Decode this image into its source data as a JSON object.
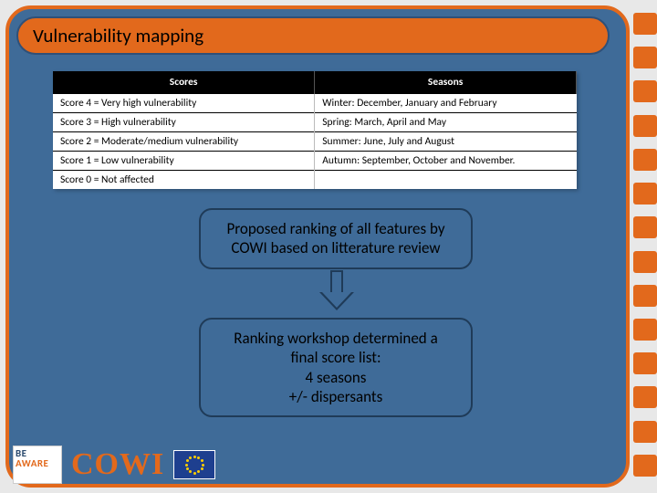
{
  "title": "Vulnerability mapping",
  "table": {
    "headers": [
      "Scores",
      "Seasons"
    ],
    "rows": [
      [
        "Score 4 = Very high vulnerability",
        "Winter: December, January and February"
      ],
      [
        "Score 3 = High vulnerability",
        "Spring: March, April and May"
      ],
      [
        "Score 2 = Moderate/medium vulnerability",
        "Summer: June, July and August"
      ],
      [
        "Score 1 = Low vulnerability",
        "Autumn: September, October and November."
      ],
      [
        "Score 0 = Not affected",
        ""
      ]
    ]
  },
  "callout1": {
    "line1": "Proposed ranking of all features by",
    "line2": "COWI based on litterature review"
  },
  "callout2": {
    "line1": "Ranking workshop determined a",
    "line2": "final score list:",
    "line3": "4 seasons",
    "line4": "+/- dispersants"
  },
  "logos": {
    "beaware_top": "BE",
    "beaware_bottom": "AWARE",
    "cowi": "COWI"
  },
  "style": {
    "accent": "#e2691c",
    "panel": "#3f6b98",
    "border_dark": "#1f3b58",
    "stripe_count": 14
  }
}
